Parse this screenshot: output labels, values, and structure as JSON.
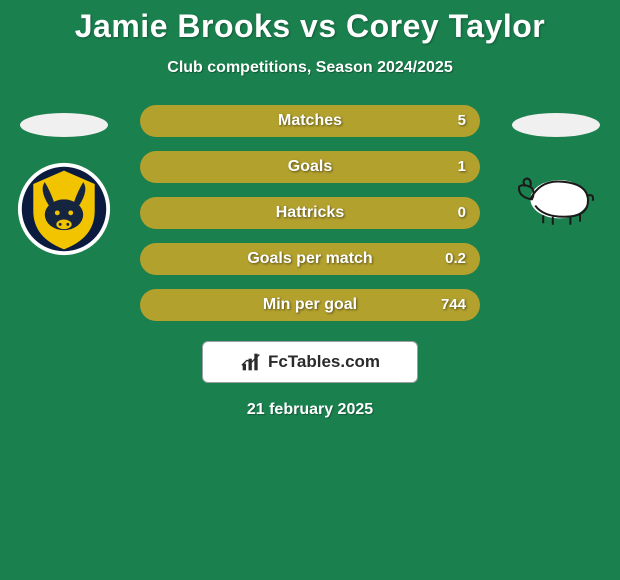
{
  "colors": {
    "page_bg": "#1a804e",
    "text_white": "#ffffff",
    "bar_fill": "#b3a12e",
    "bar_bg": "#2a6a47",
    "ellipse": "#f0f0f0",
    "brand_bg": "#ffffff",
    "brand_border": "#9aa0a6",
    "brand_text": "#2b2b2b",
    "oxford_outer": "#ffffff",
    "oxford_mid": "#0a1b3f",
    "oxford_inner": "#f2c400",
    "oxford_head": "#16253f",
    "derby_bg": "#ffffff",
    "derby_stroke": "#1a1a1a"
  },
  "title": "Jamie Brooks vs Corey Taylor",
  "subtitle": "Club competitions, Season 2024/2025",
  "date": "21 february 2025",
  "brand": {
    "text": "FcTables.com"
  },
  "stats": [
    {
      "label": "Matches",
      "value": "5",
      "fill_pct": 100
    },
    {
      "label": "Goals",
      "value": "1",
      "fill_pct": 100
    },
    {
      "label": "Hattricks",
      "value": "0",
      "fill_pct": 100
    },
    {
      "label": "Goals per match",
      "value": "0.2",
      "fill_pct": 100
    },
    {
      "label": "Min per goal",
      "value": "744",
      "fill_pct": 100
    }
  ]
}
